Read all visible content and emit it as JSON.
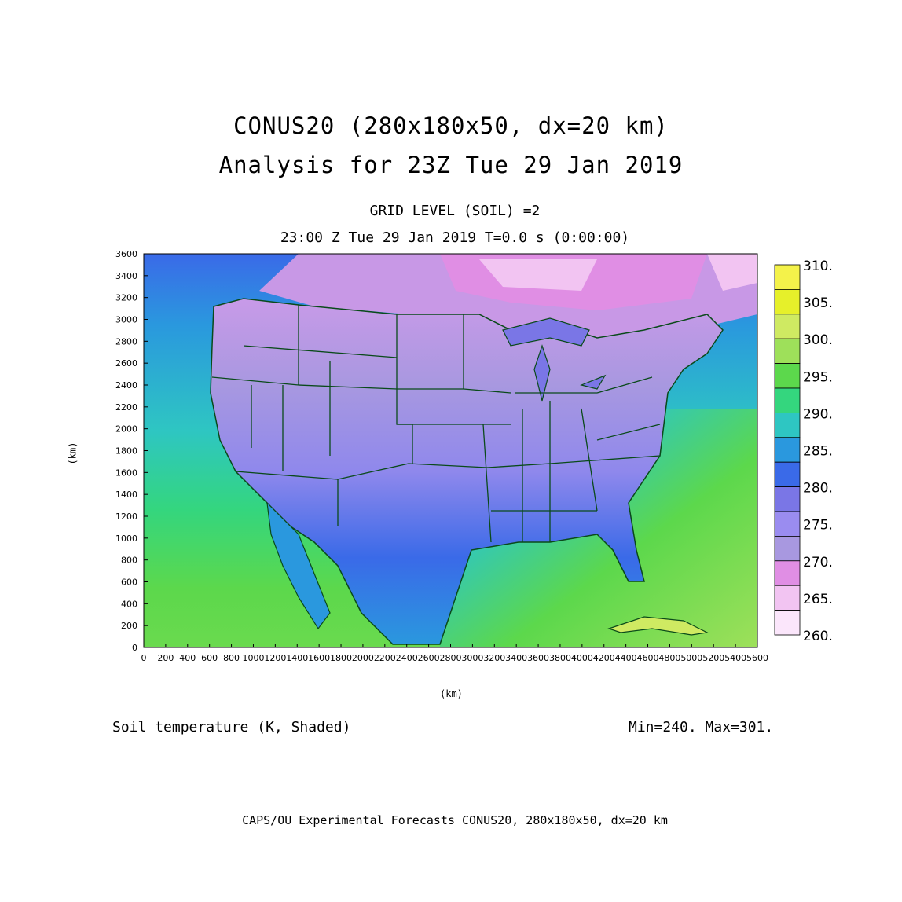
{
  "header": {
    "title_line1": "CONUS20 (280x180x50, dx=20 km)",
    "title_line2": "Analysis for 23Z Tue 29 Jan 2019",
    "grid_level": "GRID LEVEL (SOIL) =2",
    "time_line": "23:00 Z Tue 29 Jan 2019   T=0.0 s (0:00:00)"
  },
  "axes": {
    "x_label": "(km)",
    "y_label": "(km)",
    "x_ticks": [
      "0",
      "200",
      "400",
      "600",
      "800",
      "1000",
      "1200",
      "1400",
      "1600",
      "1800",
      "2000",
      "2200",
      "2400",
      "2600",
      "2800",
      "3000",
      "3200",
      "3400",
      "3600",
      "3800",
      "4000",
      "4200",
      "4400",
      "4600",
      "4800",
      "5000",
      "5200",
      "5400",
      "5600"
    ],
    "y_ticks": [
      "0",
      "200",
      "400",
      "600",
      "800",
      "1000",
      "1200",
      "1400",
      "1600",
      "1800",
      "2000",
      "2200",
      "2400",
      "2600",
      "2800",
      "3000",
      "3200",
      "3400",
      "3600"
    ]
  },
  "colorbar": {
    "labels": [
      "310.",
      "305.",
      "300.",
      "295.",
      "290.",
      "285.",
      "280.",
      "275.",
      "270.",
      "265.",
      "260."
    ],
    "colors": [
      "#f4f24a",
      "#e6f02a",
      "#cfea62",
      "#9ee05a",
      "#5cd84c",
      "#34d67e",
      "#2ec6c2",
      "#2a98de",
      "#3a6ae8",
      "#7a76e6",
      "#9a8cf0",
      "#a898e0",
      "#e08ee4",
      "#f2c4f2",
      "#fbe6fb"
    ]
  },
  "footer": {
    "field_label": "Soil temperature (K, Shaded)",
    "minmax": "Min=240.  Max=301.",
    "credit": "CAPS/OU Experimental Forecasts  CONUS20, 280x180x50, dx=20 km"
  },
  "chart_data": {
    "type": "heatmap",
    "field": "Soil temperature (K, Shaded)",
    "xlim": [
      0,
      5600
    ],
    "ylim": [
      0,
      3600
    ],
    "units_x": "km",
    "units_y": "km",
    "min": 240,
    "max": 301,
    "colorbar_levels": [
      260,
      265,
      270,
      275,
      280,
      285,
      290,
      295,
      300,
      305,
      310
    ]
  }
}
